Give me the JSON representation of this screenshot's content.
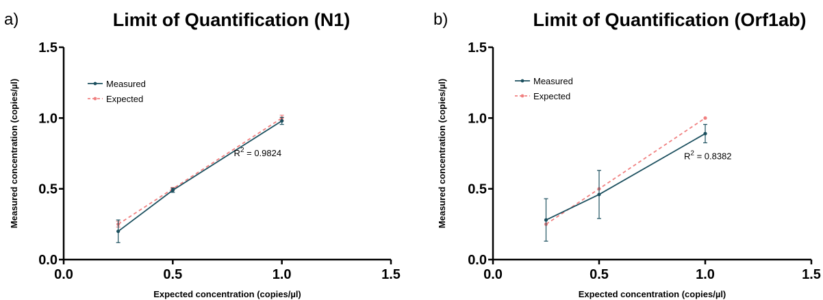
{
  "chart_data": [
    {
      "type": "line",
      "panel": "a)",
      "title": "Limit of Quantification (N1)",
      "xlabel": "Expected concentration (copies/µl)",
      "ylabel": "Measured concentration (copies/µl)",
      "xlim": [
        0,
        1.5
      ],
      "ylim": [
        0,
        1.5
      ],
      "xticks": [
        "0.0",
        "0.5",
        "1.0",
        "1.5"
      ],
      "yticks": [
        "0.0",
        "0.5",
        "1.0",
        "1.5"
      ],
      "grid": false,
      "legend_position": "top-left",
      "annotation": {
        "prefix": "R",
        "sup": "2",
        "value": " = 0.9824",
        "x": 0.78,
        "y": 0.73
      },
      "series": [
        {
          "name": "Measured",
          "color": "#1b4f5e",
          "style": "solid",
          "x": [
            0.25,
            0.5,
            1.0
          ],
          "values": [
            0.2,
            0.49,
            0.98
          ],
          "errors": [
            0.08,
            0.015,
            0.025
          ]
        },
        {
          "name": "Expected",
          "color": "#f08080",
          "style": "dashed",
          "x": [
            0.25,
            0.5,
            1.0
          ],
          "values": [
            0.25,
            0.5,
            1.0
          ],
          "errors": [
            0.02,
            0.01,
            0.02
          ]
        }
      ]
    },
    {
      "type": "line",
      "panel": "b)",
      "title": "Limit of Quantification (Orf1ab)",
      "xlabel": "Expected concentration (copies/µl)",
      "ylabel": "Measured concentration (copies/µl)",
      "xlim": [
        0,
        1.5
      ],
      "ylim": [
        0,
        1.5
      ],
      "xticks": [
        "0.0",
        "0.5",
        "1.0",
        "1.5"
      ],
      "yticks": [
        "0.0",
        "0.5",
        "1.0",
        "1.5"
      ],
      "grid": false,
      "legend_position": "top-left",
      "annotation": {
        "prefix": "R",
        "sup": "2",
        "value": " = 0.8382",
        "x": 0.9,
        "y": 0.71
      },
      "series": [
        {
          "name": "Measured",
          "color": "#1b4f5e",
          "style": "solid",
          "x": [
            0.25,
            0.5,
            1.0
          ],
          "values": [
            0.28,
            0.46,
            0.89
          ],
          "errors": [
            0.15,
            0.17,
            0.065
          ]
        },
        {
          "name": "Expected",
          "color": "#f08080",
          "style": "dashed",
          "x": [
            0.25,
            0.5,
            1.0
          ],
          "values": [
            0.25,
            0.5,
            1.0
          ],
          "errors": [
            0,
            0,
            0
          ]
        }
      ]
    }
  ]
}
